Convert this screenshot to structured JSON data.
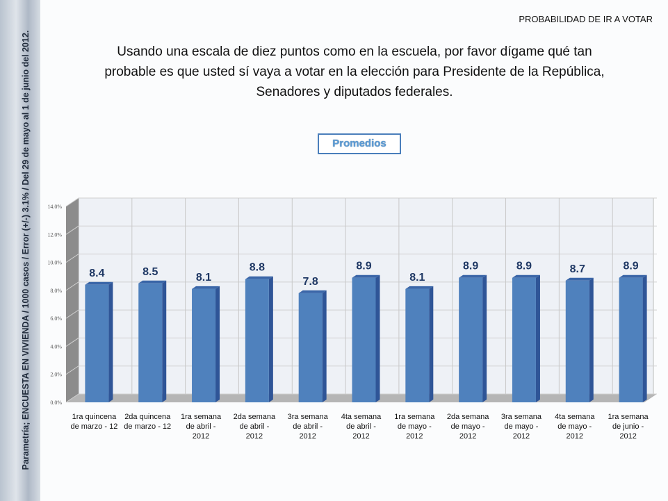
{
  "header": {
    "section": "PROBABILIDAD DE IR A VOTAR"
  },
  "side_note": "Parametría; ENCUESTA EN VIVIENDA / 1000 casos / Error (+/-) 3.1% / Del 29 de mayo al 1 de junio del 2012.",
  "question": "Usando una escala de diez puntos como en la escuela, por favor dígame qué tan probable es que usted sí vaya a votar en la elección para Presidente de la República, Senadores y diputados federales.",
  "chart_data": {
    "type": "bar",
    "title": "Promedios",
    "categories": [
      [
        "1ra quincena",
        "de marzo - 12"
      ],
      [
        "2da quincena",
        "de marzo - 12"
      ],
      [
        "1ra semana",
        "de abril -",
        "2012"
      ],
      [
        "2da semana",
        "de abril -",
        "2012"
      ],
      [
        "3ra semana",
        "de abril -",
        "2012"
      ],
      [
        "4ta semana",
        "de abril -",
        "2012"
      ],
      [
        "1ra semana",
        "de mayo -",
        "2012"
      ],
      [
        "2da semana",
        "de mayo -",
        "2012"
      ],
      [
        "3ra semana",
        "de mayo -",
        "2012"
      ],
      [
        "4ta semana",
        "de mayo -",
        "2012"
      ],
      [
        "1ra semana",
        "de junio -",
        "2012"
      ]
    ],
    "values": [
      8.4,
      8.5,
      8.1,
      8.8,
      7.8,
      8.9,
      8.1,
      8.9,
      8.9,
      8.7,
      8.9
    ],
    "value_labels": [
      "8.4",
      "8.5",
      "8.1",
      "8.8",
      "7.8",
      "8.9",
      "8.1",
      "8.9",
      "8.9",
      "8.7",
      "8.9"
    ],
    "yticks": [
      "0.0%",
      "2.0%",
      "4.0%",
      "6.0%",
      "8.0%",
      "10.0%",
      "12.0%",
      "14.0%"
    ],
    "ylim": [
      0,
      14
    ],
    "grid": true,
    "bar_color": "#4f81bd"
  }
}
